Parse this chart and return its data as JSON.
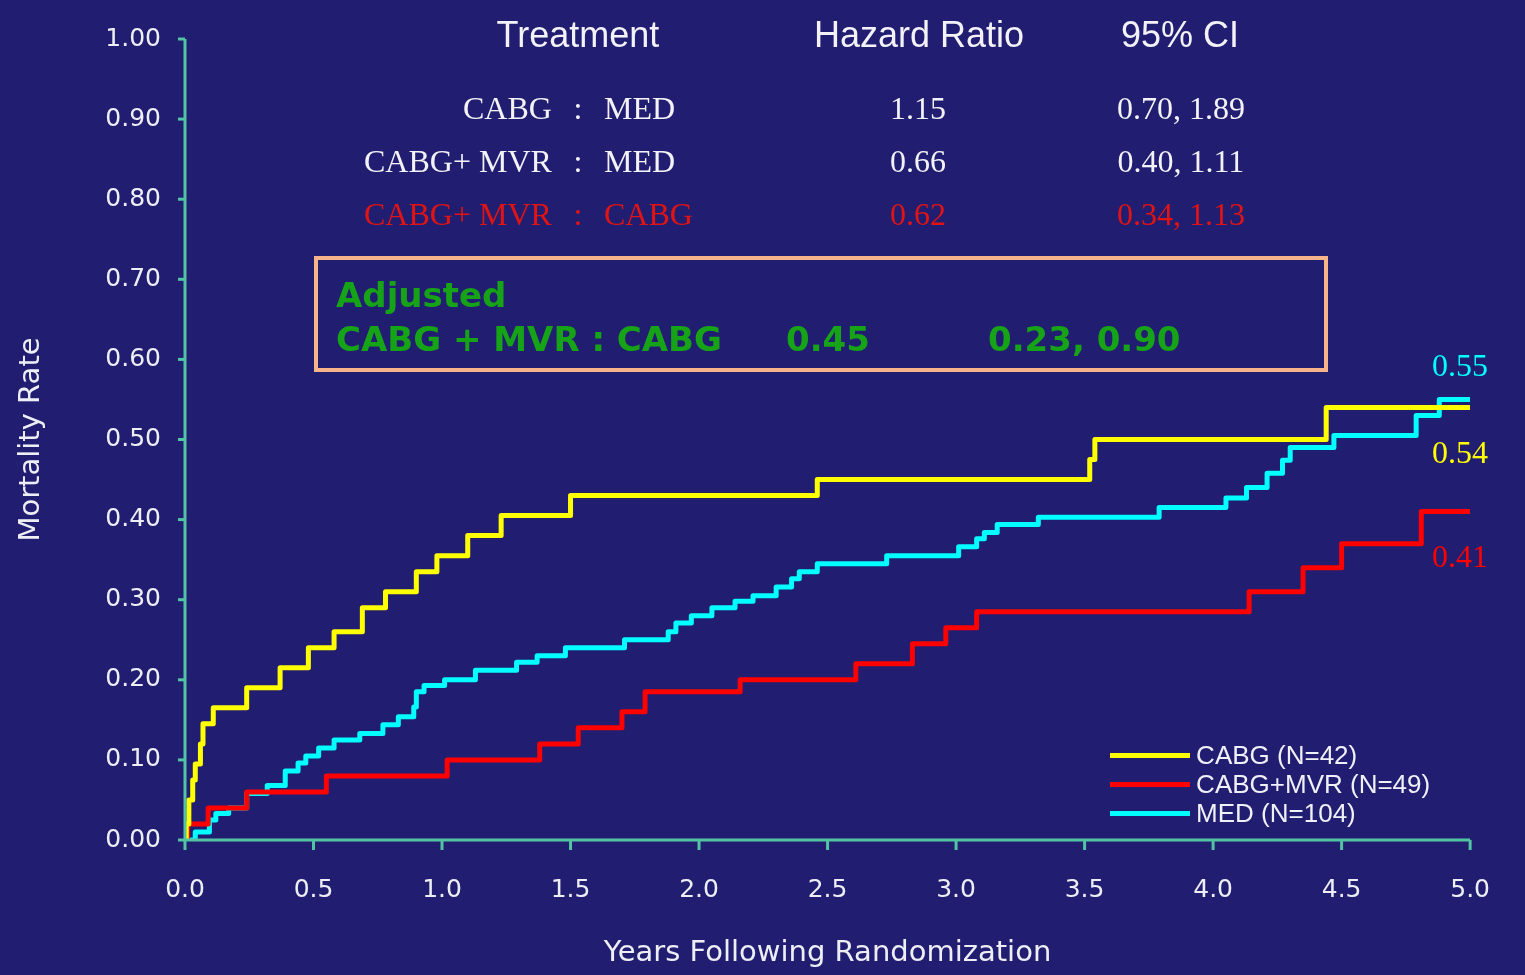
{
  "chart_data": {
    "type": "step",
    "xlabel": "Years Following Randomization",
    "ylabel": "Mortality Rate",
    "xlim": [
      0,
      5
    ],
    "ylim": [
      0,
      1
    ],
    "xticks": [
      {
        "value": 0,
        "label": "0.0"
      },
      {
        "value": 0.5,
        "label": "0.5"
      },
      {
        "value": 1,
        "label": "1.0"
      },
      {
        "value": 1.5,
        "label": "1.5"
      },
      {
        "value": 2,
        "label": "2.0"
      },
      {
        "value": 2.5,
        "label": "2.5"
      },
      {
        "value": 3,
        "label": "3.0"
      },
      {
        "value": 3.5,
        "label": "3.5"
      },
      {
        "value": 4,
        "label": "4.0"
      },
      {
        "value": 4.5,
        "label": "4.5"
      },
      {
        "value": 5,
        "label": "5.0"
      }
    ],
    "yticks": [
      {
        "value": 0,
        "label": "0.00"
      },
      {
        "value": 0.1,
        "label": "0.10"
      },
      {
        "value": 0.2,
        "label": "0.20"
      },
      {
        "value": 0.3,
        "label": "0.30"
      },
      {
        "value": 0.4,
        "label": "0.40"
      },
      {
        "value": 0.5,
        "label": "0.50"
      },
      {
        "value": 0.6,
        "label": "0.60"
      },
      {
        "value": 0.7,
        "label": "0.70"
      },
      {
        "value": 0.8,
        "label": "0.80"
      },
      {
        "value": 0.9,
        "label": "0.90"
      },
      {
        "value": 1,
        "label": "1.00"
      }
    ],
    "legend": "bottom right",
    "series": [
      {
        "name": "CABG (N=42)",
        "color": "#ffff00",
        "x": [
          0,
          0.005,
          0.015,
          0.03,
          0.04,
          0.06,
          0.07,
          0.11,
          0.24,
          0.37,
          0.48,
          0.58,
          0.69,
          0.78,
          0.9,
          0.98,
          1.1,
          1.23,
          1.5,
          2.46,
          3.52,
          3.54,
          4.44,
          5.0
        ],
        "values": [
          0,
          0.02,
          0.05,
          0.075,
          0.095,
          0.12,
          0.145,
          0.165,
          0.19,
          0.215,
          0.24,
          0.26,
          0.29,
          0.31,
          0.335,
          0.355,
          0.38,
          0.405,
          0.43,
          0.45,
          0.475,
          0.5,
          0.54,
          0.54
        ],
        "value_labels": [
          null,
          null,
          null,
          null,
          null,
          null,
          null,
          null,
          null,
          null,
          null,
          null,
          null,
          null,
          null,
          null,
          null,
          null,
          null,
          null,
          null,
          null,
          null,
          "0.54"
        ]
      },
      {
        "name": "CABG+MVR (N=49)",
        "color": "#ff0000",
        "x": [
          0,
          0.01,
          0.09,
          0.24,
          0.55,
          1.02,
          1.38,
          1.53,
          1.7,
          1.79,
          2.16,
          2.61,
          2.83,
          2.96,
          3.08,
          4.14,
          4.35,
          4.5,
          4.81,
          5.0
        ],
        "values": [
          0,
          0.02,
          0.04,
          0.06,
          0.08,
          0.1,
          0.12,
          0.14,
          0.16,
          0.185,
          0.2,
          0.22,
          0.245,
          0.265,
          0.285,
          0.31,
          0.34,
          0.37,
          0.41,
          0.41
        ],
        "value_labels": [
          null,
          null,
          null,
          null,
          null,
          null,
          null,
          null,
          null,
          null,
          null,
          null,
          null,
          null,
          null,
          null,
          null,
          null,
          null,
          "0.41"
        ]
      },
      {
        "name": "MED (N=104)",
        "color": "#00ffff",
        "x": [
          0,
          0.04,
          0.095,
          0.12,
          0.17,
          0.24,
          0.32,
          0.39,
          0.44,
          0.47,
          0.52,
          0.58,
          0.68,
          0.77,
          0.83,
          0.89,
          0.9,
          0.93,
          1.01,
          1.13,
          1.29,
          1.37,
          1.48,
          1.71,
          1.88,
          1.91,
          1.97,
          2.05,
          2.14,
          2.21,
          2.3,
          2.36,
          2.39,
          2.46,
          2.73,
          3.01,
          3.08,
          3.11,
          3.16,
          3.32,
          3.79,
          4.05,
          4.13,
          4.21,
          4.27,
          4.3,
          4.47,
          4.79,
          4.88,
          5.0
        ],
        "values": [
          0,
          0.01,
          0.025,
          0.033,
          0.04,
          0.058,
          0.068,
          0.086,
          0.096,
          0.105,
          0.115,
          0.125,
          0.133,
          0.144,
          0.154,
          0.166,
          0.185,
          0.193,
          0.2,
          0.212,
          0.222,
          0.23,
          0.24,
          0.25,
          0.26,
          0.271,
          0.28,
          0.29,
          0.298,
          0.305,
          0.316,
          0.326,
          0.335,
          0.345,
          0.355,
          0.366,
          0.376,
          0.384,
          0.394,
          0.403,
          0.415,
          0.427,
          0.44,
          0.458,
          0.474,
          0.49,
          0.505,
          0.53,
          0.55,
          0.55
        ],
        "value_labels": [
          null,
          null,
          null,
          null,
          null,
          null,
          null,
          null,
          null,
          null,
          null,
          null,
          null,
          null,
          null,
          null,
          null,
          null,
          null,
          null,
          null,
          null,
          null,
          null,
          null,
          null,
          null,
          null,
          null,
          null,
          null,
          null,
          null,
          null,
          null,
          null,
          null,
          null,
          null,
          null,
          null,
          null,
          null,
          null,
          null,
          null,
          null,
          null,
          null,
          "0.55"
        ]
      }
    ],
    "annotations": [
      "Treatment",
      "Hazard  Ratio",
      "95% CI",
      "CABG",
      ":",
      "MED",
      "1.15",
      "0.70,  1.89",
      "CABG+ MVR",
      ":",
      "MED",
      "0.66",
      "0.40,  1.11",
      "CABG+ MVR",
      ":",
      "CABG",
      "0.62",
      "0.34,  1.13",
      "Adjusted",
      "CABG + MVR : CABG",
      "0.45",
      "0.23, 0.90"
    ]
  }
}
